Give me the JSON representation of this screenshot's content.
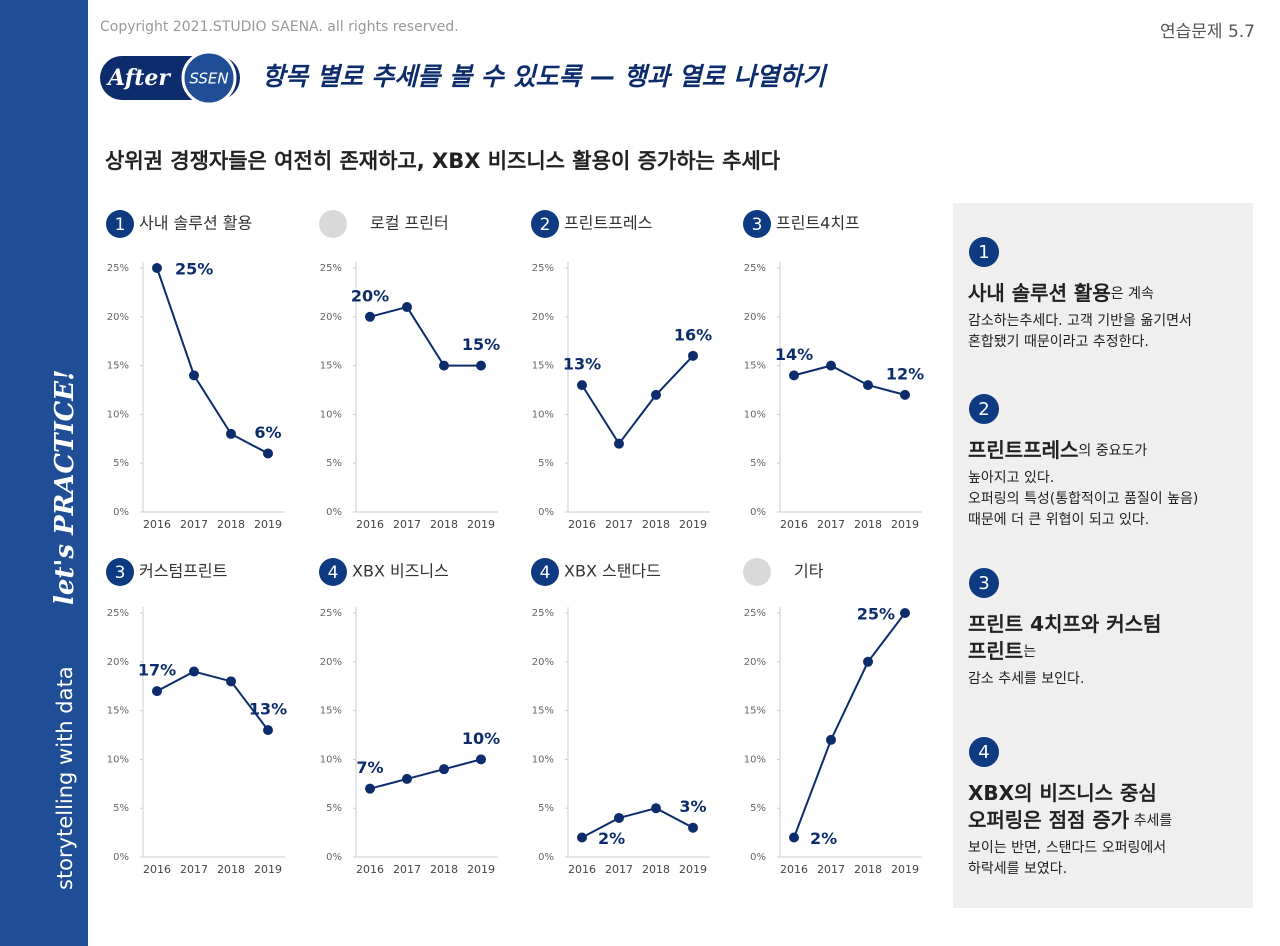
{
  "header": {
    "copyright": "Copyright 2021.STUDIO SAENA. all rights reserved.",
    "exercise": "연습문제 5.7",
    "badge_after": "After",
    "badge_ssen": "SSEN",
    "title": "항목 별로 추세를 볼 수 있도록 — 행과 열로 나열하기",
    "subtitle": "상위권 경쟁자들은 여전히 존재하고, XBX 비즈니스 활용이 증가하는 추세다"
  },
  "sidebar": {
    "text": "storytelling with data",
    "tagline": "let's PRACTICE!"
  },
  "chart_data": [
    {
      "type": "line",
      "badge": "1",
      "title": "사내 솔루션 활용",
      "categories": [
        "2016",
        "2017",
        "2018",
        "2019"
      ],
      "values": [
        25,
        14,
        8,
        6
      ],
      "value_labels": [
        "25%",
        null,
        null,
        "6%"
      ],
      "color": "#0d2c6c",
      "ylim": [
        0,
        25
      ],
      "yticks": [
        {
          "value": 0,
          "label": "0%"
        },
        {
          "value": 5,
          "label": "5%"
        },
        {
          "value": 10,
          "label": "10%"
        },
        {
          "value": 15,
          "label": "15%"
        },
        {
          "value": 20,
          "label": "20%"
        },
        {
          "value": 25,
          "label": "25%"
        }
      ]
    },
    {
      "type": "line",
      "title": "로컬 프린터",
      "categories": [
        "2016",
        "2017",
        "2018",
        "2019"
      ],
      "values": [
        20,
        21,
        15,
        15
      ],
      "value_labels": [
        "20%",
        null,
        null,
        "15%"
      ],
      "color": "#0d2c6c",
      "ylim": [
        0,
        25
      ],
      "yticks": [
        {
          "value": 0,
          "label": "0%"
        },
        {
          "value": 5,
          "label": "5%"
        },
        {
          "value": 10,
          "label": "10%"
        },
        {
          "value": 15,
          "label": "15%"
        },
        {
          "value": 20,
          "label": "20%"
        },
        {
          "value": 25,
          "label": "25%"
        }
      ]
    },
    {
      "type": "line",
      "badge": "2",
      "title": "프린트프레스",
      "categories": [
        "2016",
        "2017",
        "2018",
        "2019"
      ],
      "values": [
        13,
        7,
        12,
        16
      ],
      "value_labels": [
        "13%",
        null,
        null,
        "16%"
      ],
      "color": "#0d2c6c",
      "ylim": [
        0,
        25
      ],
      "yticks": [
        {
          "value": 0,
          "label": "0%"
        },
        {
          "value": 5,
          "label": "5%"
        },
        {
          "value": 10,
          "label": "10%"
        },
        {
          "value": 15,
          "label": "15%"
        },
        {
          "value": 20,
          "label": "20%"
        },
        {
          "value": 25,
          "label": "25%"
        }
      ]
    },
    {
      "type": "line",
      "badge": "3",
      "title": "프린트4치프",
      "categories": [
        "2016",
        "2017",
        "2018",
        "2019"
      ],
      "values": [
        14,
        15,
        13,
        12
      ],
      "value_labels": [
        "14%",
        null,
        null,
        "12%"
      ],
      "color": "#0d2c6c",
      "ylim": [
        0,
        25
      ],
      "yticks": [
        {
          "value": 0,
          "label": "0%"
        },
        {
          "value": 5,
          "label": "5%"
        },
        {
          "value": 10,
          "label": "10%"
        },
        {
          "value": 15,
          "label": "15%"
        },
        {
          "value": 20,
          "label": "20%"
        },
        {
          "value": 25,
          "label": "25%"
        }
      ]
    },
    {
      "type": "line",
      "badge": "3",
      "title": "커스텀프린트",
      "categories": [
        "2016",
        "2017",
        "2018",
        "2019"
      ],
      "values": [
        17,
        19,
        18,
        13
      ],
      "value_labels": [
        "17%",
        null,
        null,
        "13%"
      ],
      "color": "#0d2c6c",
      "ylim": [
        0,
        25
      ],
      "yticks": [
        {
          "value": 0,
          "label": "0%"
        },
        {
          "value": 5,
          "label": "5%"
        },
        {
          "value": 10,
          "label": "10%"
        },
        {
          "value": 15,
          "label": "15%"
        },
        {
          "value": 20,
          "label": "20%"
        },
        {
          "value": 25,
          "label": "25%"
        }
      ]
    },
    {
      "type": "line",
      "badge": "4",
      "title": "XBX 비즈니스",
      "categories": [
        "2016",
        "2017",
        "2018",
        "2019"
      ],
      "values": [
        7,
        8,
        9,
        10
      ],
      "value_labels": [
        "7%",
        null,
        null,
        "10%"
      ],
      "color": "#0d2c6c",
      "ylim": [
        0,
        25
      ],
      "yticks": [
        {
          "value": 0,
          "label": "0%"
        },
        {
          "value": 5,
          "label": "5%"
        },
        {
          "value": 10,
          "label": "10%"
        },
        {
          "value": 15,
          "label": "15%"
        },
        {
          "value": 20,
          "label": "20%"
        },
        {
          "value": 25,
          "label": "25%"
        }
      ]
    },
    {
      "type": "line",
      "badge": "4",
      "title": "XBX 스탠다드",
      "categories": [
        "2016",
        "2017",
        "2018",
        "2019"
      ],
      "values": [
        2,
        4,
        5,
        3
      ],
      "value_labels": [
        "2%",
        null,
        null,
        "3%"
      ],
      "color": "#0d2c6c",
      "ylim": [
        0,
        25
      ],
      "yticks": [
        {
          "value": 0,
          "label": "0%"
        },
        {
          "value": 5,
          "label": "5%"
        },
        {
          "value": 10,
          "label": "10%"
        },
        {
          "value": 15,
          "label": "15%"
        },
        {
          "value": 20,
          "label": "20%"
        },
        {
          "value": 25,
          "label": "25%"
        }
      ]
    },
    {
      "type": "line",
      "title": "기타",
      "categories": [
        "2016",
        "2017",
        "2018",
        "2019"
      ],
      "values": [
        2,
        12,
        20,
        25
      ],
      "value_labels": [
        "2%",
        null,
        null,
        "25%"
      ],
      "color": "#0d2c6c",
      "ylim": [
        0,
        25
      ],
      "yticks": [
        {
          "value": 0,
          "label": "0%"
        },
        {
          "value": 5,
          "label": "5%"
        },
        {
          "value": 10,
          "label": "10%"
        },
        {
          "value": 15,
          "label": "15%"
        },
        {
          "value": 20,
          "label": "20%"
        },
        {
          "value": 25,
          "label": "25%"
        }
      ]
    }
  ],
  "notes": [
    {
      "number": "1",
      "lines": [
        [
          {
            "text": "사내 솔루션 활용",
            "bold": true
          },
          {
            "text": "은 계속",
            "bold": false
          }
        ],
        [
          {
            "text": "감소하는추세다. 고객 기반을 옮기면서",
            "bold": false
          }
        ],
        [
          {
            "text": "혼합됐기 때문이라고 추정한다.",
            "bold": false
          }
        ]
      ]
    },
    {
      "number": "2",
      "lines": [
        [
          {
            "text": "프린트프레스",
            "bold": true
          },
          {
            "text": "의 중요도가",
            "bold": false
          }
        ],
        [
          {
            "text": "높아지고 있다.",
            "bold": false
          }
        ],
        [
          {
            "text": "오퍼링의 특성(통합적이고 품질이 높음)",
            "bold": false
          }
        ],
        [
          {
            "text": "때문에 더 큰 위협이 되고 있다.",
            "bold": false
          }
        ]
      ]
    },
    {
      "number": "3",
      "lines": [
        [
          {
            "text": "프린트 4치프와 커스텀",
            "bold": true
          }
        ],
        [
          {
            "text": "프린트",
            "bold": true
          },
          {
            "text": "는",
            "bold": false
          }
        ],
        [
          {
            "text": "감소 추세를 보인다.",
            "bold": false
          }
        ]
      ]
    },
    {
      "number": "4",
      "lines": [
        [
          {
            "text": "XBX의 비즈니스 중심",
            "bold": true
          }
        ],
        [
          {
            "text": "오퍼링은 점점 증가",
            "bold": true
          },
          {
            "text": " 추세를",
            "bold": false
          }
        ],
        [
          {
            "text": "보이는 반면, 스탠다드 오퍼링에서",
            "bold": false
          }
        ],
        [
          {
            "text": "하락세를 보였다.",
            "bold": false
          }
        ]
      ]
    }
  ]
}
